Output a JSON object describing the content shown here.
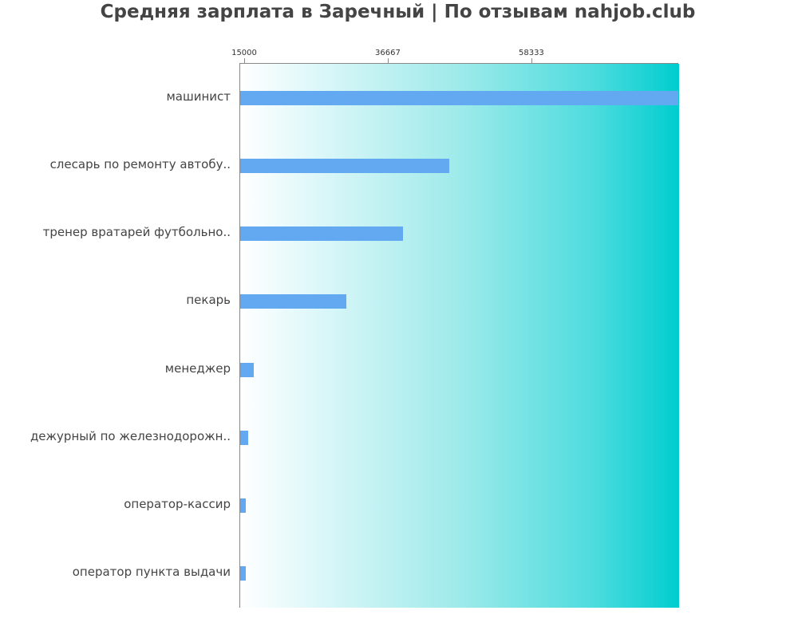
{
  "chart_data": {
    "type": "bar",
    "orientation": "horizontal",
    "title": "Средняя зарплата в Заречный | По отзывам nahjob.club",
    "xlabel": "",
    "ylabel": "",
    "xlim": [
      14278,
      80500
    ],
    "x_ticks": [
      15000,
      36667,
      58333
    ],
    "x_tick_labels": [
      "15000",
      "36667",
      "58333"
    ],
    "x_axis_position": "top",
    "grid": false,
    "categories": [
      "машинист",
      "слесарь по ремонту автобу..",
      "тренер вратарей футбольно..",
      "пекарь",
      "менеджер",
      "дежурный по железнодорожн..",
      "оператор-кассир",
      "оператор пункта выдачи"
    ],
    "values": [
      80500,
      46000,
      39000,
      30400,
      16500,
      15600,
      15300,
      15300
    ],
    "colors": {
      "bar": "#62a9f1",
      "background_gradient_start": "#ffffff",
      "background_gradient_end": "#00cdcf",
      "title": "#444444"
    }
  }
}
